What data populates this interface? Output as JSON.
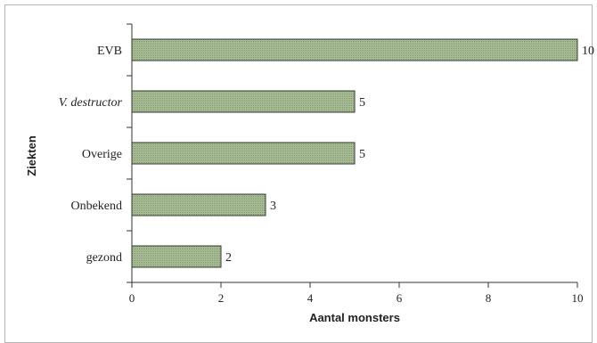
{
  "chart_data": {
    "type": "bar",
    "orientation": "horizontal",
    "categories": [
      "EVB",
      "V. destructor",
      "Overige",
      "Onbekend",
      "gezond"
    ],
    "italic_categories": [
      "V. destructor"
    ],
    "values": [
      10,
      5,
      5,
      3,
      2
    ],
    "data_labels": [
      "10",
      "5",
      "5",
      "3",
      "2"
    ],
    "xlabel": "Aantal monsters",
    "ylabel": "Ziekten",
    "xlim": [
      0,
      10
    ],
    "xticks": [
      0,
      2,
      4,
      6,
      8,
      10
    ],
    "xtick_labels": [
      "0",
      "2",
      "4",
      "6",
      "8",
      "10"
    ],
    "grid": false,
    "bar_color": "#9ab088",
    "bar_edge_color": "#2f3a2a"
  }
}
